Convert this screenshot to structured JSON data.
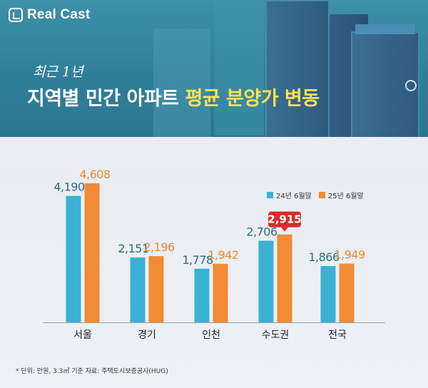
{
  "header": {
    "logo": "Real Cast",
    "subtitle": "최근 1년",
    "title_white": "지역별 민간 아파트",
    "title_highlight": "평균 분양가 변동"
  },
  "legend": {
    "series1": "24년 6월말",
    "series2": "25년 6월말"
  },
  "footnote": "* 단위: 만원, 3.3㎡ 기준 자료: 주택도시보증공사(HUG)",
  "colors": {
    "series1": "#3ab2d4",
    "series2": "#f28a35",
    "highlight_badge": "#d92b2b"
  },
  "chart_data": {
    "type": "bar",
    "categories": [
      "서울",
      "경기",
      "인천",
      "수도권",
      "전국"
    ],
    "series": [
      {
        "name": "24년 6월말",
        "values": [
          4190,
          2151,
          1778,
          2706,
          1866
        ],
        "labels": [
          "4,190",
          "2,151",
          "1,778",
          "2,706",
          "1,866"
        ]
      },
      {
        "name": "25년 6월말",
        "values": [
          4608,
          2196,
          1942,
          2915,
          1949
        ],
        "labels": [
          "4,608",
          "2,196",
          "1,942",
          "2,915",
          "1,949"
        ]
      }
    ],
    "highlight": {
      "series": 1,
      "category": 3
    },
    "title": "지역별 민간 아파트 평균 분양가 변동",
    "xlabel": "",
    "ylabel": "",
    "legend_position": "top-right",
    "grid": false
  }
}
